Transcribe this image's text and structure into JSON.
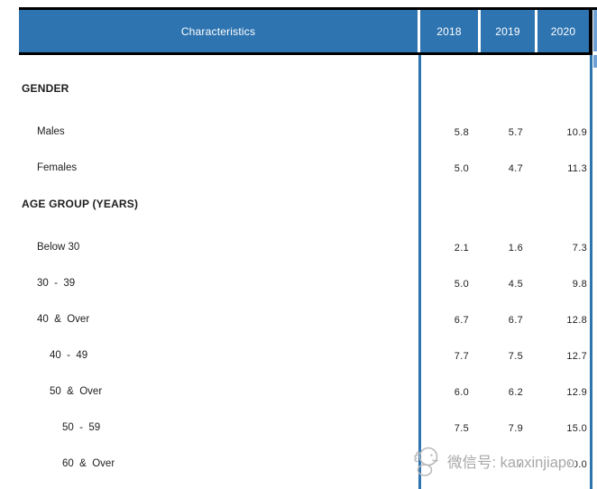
{
  "table": {
    "header": {
      "characteristics_label": "Characteristics",
      "year_columns": [
        "2018",
        "2019",
        "2020"
      ]
    },
    "rows": [
      {
        "label": "GENDER",
        "type": "section",
        "indent": 0,
        "values": []
      },
      {
        "label": "Males",
        "type": "data",
        "indent": 1,
        "values": [
          "5.8",
          "5.7",
          "10.9"
        ]
      },
      {
        "label": "Females",
        "type": "data",
        "indent": 1,
        "values": [
          "5.0",
          "4.7",
          "11.3"
        ]
      },
      {
        "label": "AGE GROUP (YEARS)",
        "type": "section",
        "indent": 0,
        "values": []
      },
      {
        "label": "Below 30",
        "type": "data",
        "indent": 1,
        "values": [
          "2.1",
          "1.6",
          "7.3"
        ]
      },
      {
        "label": "30  -  39",
        "type": "data",
        "indent": 1,
        "values": [
          "5.0",
          "4.5",
          "9.8"
        ]
      },
      {
        "label": "40  &  Over",
        "type": "data",
        "indent": 1,
        "values": [
          "6.7",
          "6.7",
          "12.8"
        ]
      },
      {
        "label": "40  -  49",
        "type": "data",
        "indent": 2,
        "values": [
          "7.7",
          "7.5",
          "12.7"
        ]
      },
      {
        "label": "50  &  Over",
        "type": "data",
        "indent": 2,
        "values": [
          "6.0",
          "6.2",
          "12.9"
        ]
      },
      {
        "label": "50  -  59",
        "type": "data",
        "indent": 3,
        "values": [
          "7.5",
          "7.9",
          "15.0"
        ]
      },
      {
        "label": "60  &  Over",
        "type": "data",
        "indent": 3,
        "values": [
          "3.8",
          "3.7",
          "10.0"
        ],
        "values_obscured_by_watermark": true
      }
    ]
  },
  "watermark": {
    "text": "微信号: kanxinjiapo",
    "logo": "cartoon-mascot-icon"
  },
  "colors": {
    "header_blue": "#2e74b0",
    "sliver_blue": "#6fa1d4",
    "border_black": "#000000",
    "watermark_gray": "#a8a8a8"
  }
}
